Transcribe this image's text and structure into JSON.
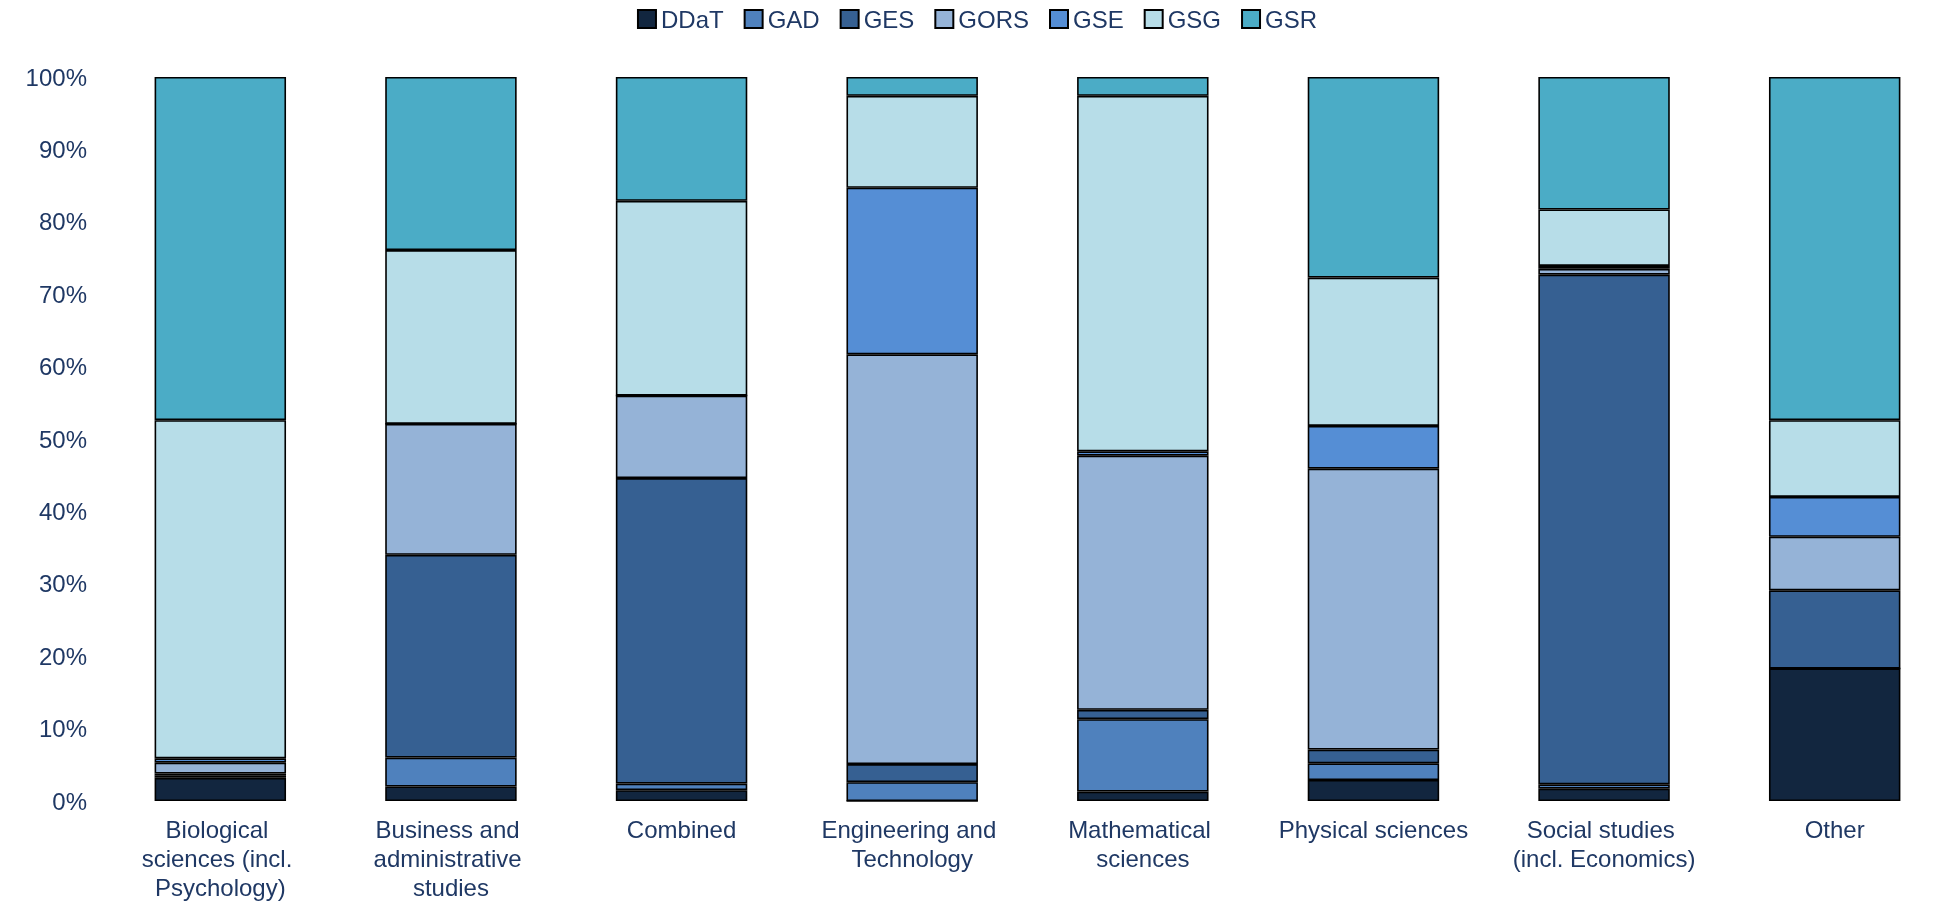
{
  "chart_data": {
    "type": "bar",
    "stacked": true,
    "legend": "top",
    "grid": false,
    "categories": [
      "Biological sciences (incl. Psychology)",
      "Business and administrative studies",
      "Combined",
      "Engineering and Technology",
      "Mathematical sciences",
      "Physical sciences",
      "Social studies (incl. Economics)",
      "Other"
    ],
    "ylim": [
      0,
      100
    ],
    "yticks": [
      {
        "value": 0,
        "label": "0%"
      },
      {
        "value": 10,
        "label": "10%"
      },
      {
        "value": 20,
        "label": "20%"
      },
      {
        "value": 30,
        "label": "30%"
      },
      {
        "value": 40,
        "label": "40%"
      },
      {
        "value": 50,
        "label": "50%"
      },
      {
        "value": 60,
        "label": "60%"
      },
      {
        "value": 70,
        "label": "70%"
      },
      {
        "value": 80,
        "label": "80%"
      },
      {
        "value": 90,
        "label": "90%"
      },
      {
        "value": 100,
        "label": "100%"
      }
    ],
    "series": [
      {
        "name": "DDaT",
        "color": "#12263f",
        "values": [
          3.2,
          2.0,
          1.5,
          0,
          1.3,
          2.9,
          1.7,
          18.3
        ]
      },
      {
        "name": "GAD",
        "color": "#4f81bd",
        "values": [
          0.3,
          4.0,
          0.9,
          2.6,
          10.0,
          2.3,
          0.6,
          0
        ]
      },
      {
        "name": "GES",
        "color": "#366092",
        "values": [
          0.3,
          28.0,
          42.2,
          2.5,
          1.3,
          1.9,
          70.4,
          10.8
        ]
      },
      {
        "name": "GORS",
        "color": "#95b3d7",
        "values": [
          1.5,
          18.1,
          11.4,
          56.6,
          35.1,
          38.8,
          0.8,
          7.4
        ]
      },
      {
        "name": "GSE",
        "color": "#558ed5",
        "values": [
          0.6,
          0,
          0,
          23.0,
          0.6,
          5.9,
          0.4,
          5.5
        ]
      },
      {
        "name": "GSG",
        "color": "#b7dde8",
        "values": [
          46.7,
          24.0,
          26.9,
          12.7,
          49.1,
          20.5,
          7.8,
          10.6
        ]
      },
      {
        "name": "GSR",
        "color": "#4bacc6",
        "values": [
          47.4,
          23.9,
          17.1,
          2.6,
          2.6,
          27.7,
          18.3,
          47.4
        ]
      }
    ]
  }
}
